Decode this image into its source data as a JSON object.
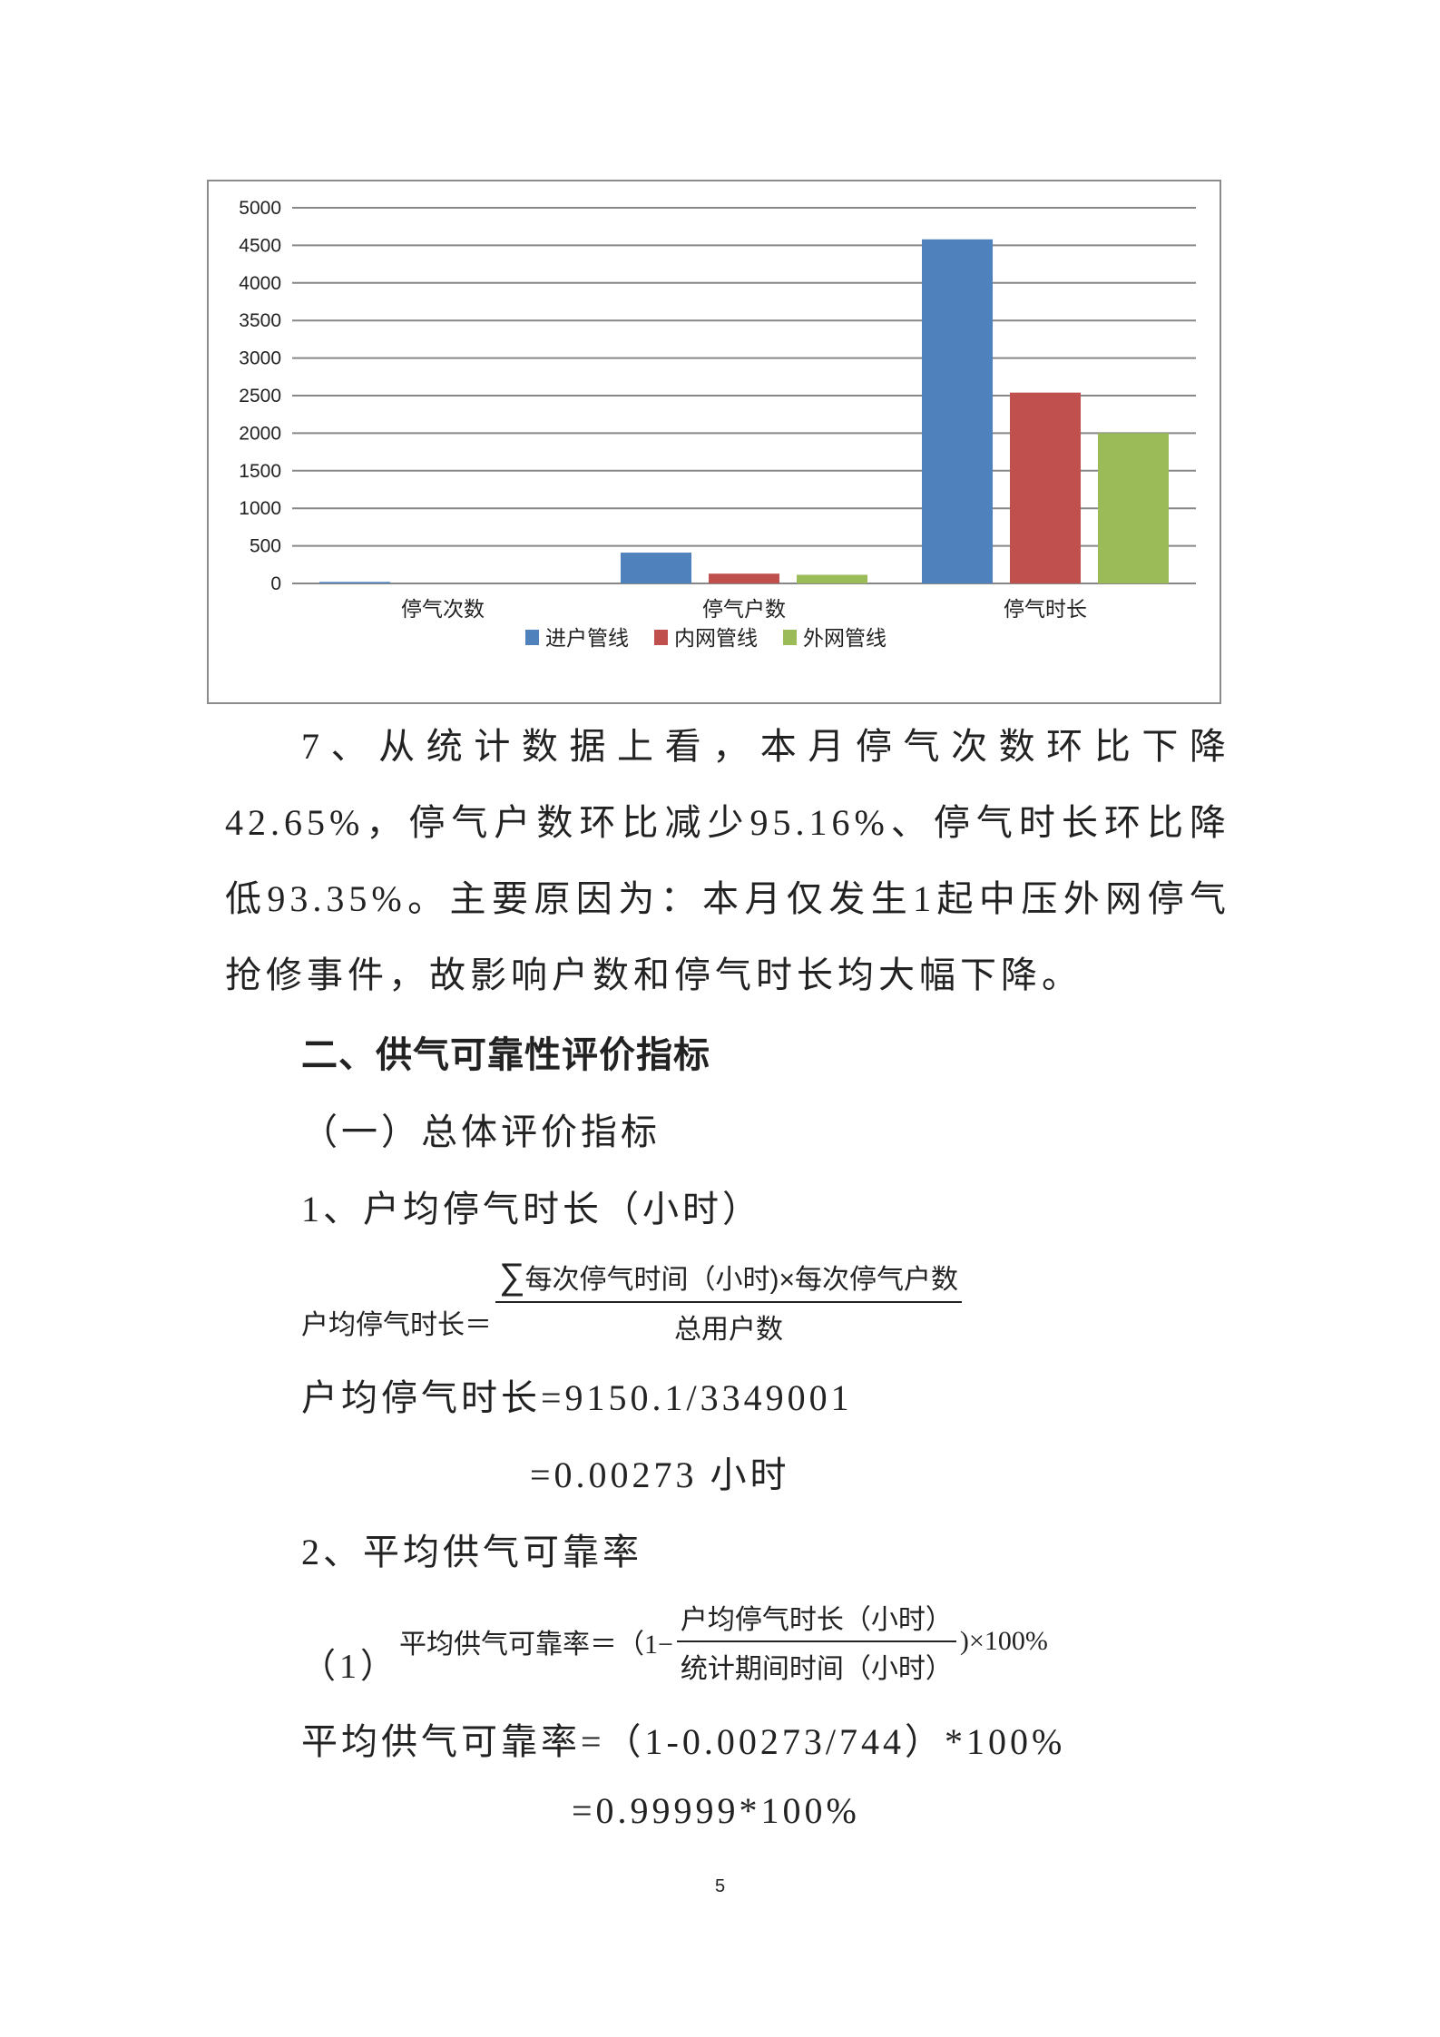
{
  "chart_data": {
    "type": "bar",
    "categories": [
      "停气次数",
      "停气户数",
      "停气时长"
    ],
    "series": [
      {
        "name": "进户管线",
        "color": "#4f81bd",
        "values": [
          20,
          410,
          4580
        ]
      },
      {
        "name": "内网管线",
        "color": "#c0504d",
        "values": [
          0,
          130,
          2540
        ]
      },
      {
        "name": "外网管线",
        "color": "#9bbb59",
        "values": [
          0,
          115,
          2000
        ]
      }
    ],
    "ylim": [
      0,
      5000
    ],
    "yticks": [
      "0",
      "500",
      "1000",
      "1500",
      "2000",
      "2500",
      "3000",
      "3500",
      "4000",
      "4500",
      "5000"
    ],
    "grid": true,
    "legend": "bottom"
  },
  "paragraph7": "7、从统计数据上看，本月停气次数环比下降42.65%，停气户数环比减少95.16%、停气时长环比降低93.35%。主要原因为：本月仅发生1起中压外网停气抢修事件，故影响户数和停气时长均大幅下降。",
  "section2_heading": "二、供气可靠性评价指标",
  "subsection1": "（一）总体评价指标",
  "item1_title": "1、户均停气时长（小时）",
  "formula1": {
    "lhs": "户均停气时长＝",
    "sigma": "∑",
    "numerator": "每次停气时间（小时)×每次停气户数",
    "denominator": "总用户数"
  },
  "calc1_line1": "户均停气时长=9150.1/3349001",
  "calc1_line2": "=0.00273 小时",
  "item2_title": "2、平均供气可靠率",
  "formula2": {
    "label": "（1）",
    "lhs": "平均供气可靠率＝（1−",
    "numerator": "户均停气时长（小时）",
    "denominator": "统计期间时间（小时）",
    "rhs": ")×100%"
  },
  "calc2_line1": "平均供气可靠率=（1-0.00273/744）*100%",
  "calc2_line2": "=0.99999*100%",
  "page_number": "5"
}
